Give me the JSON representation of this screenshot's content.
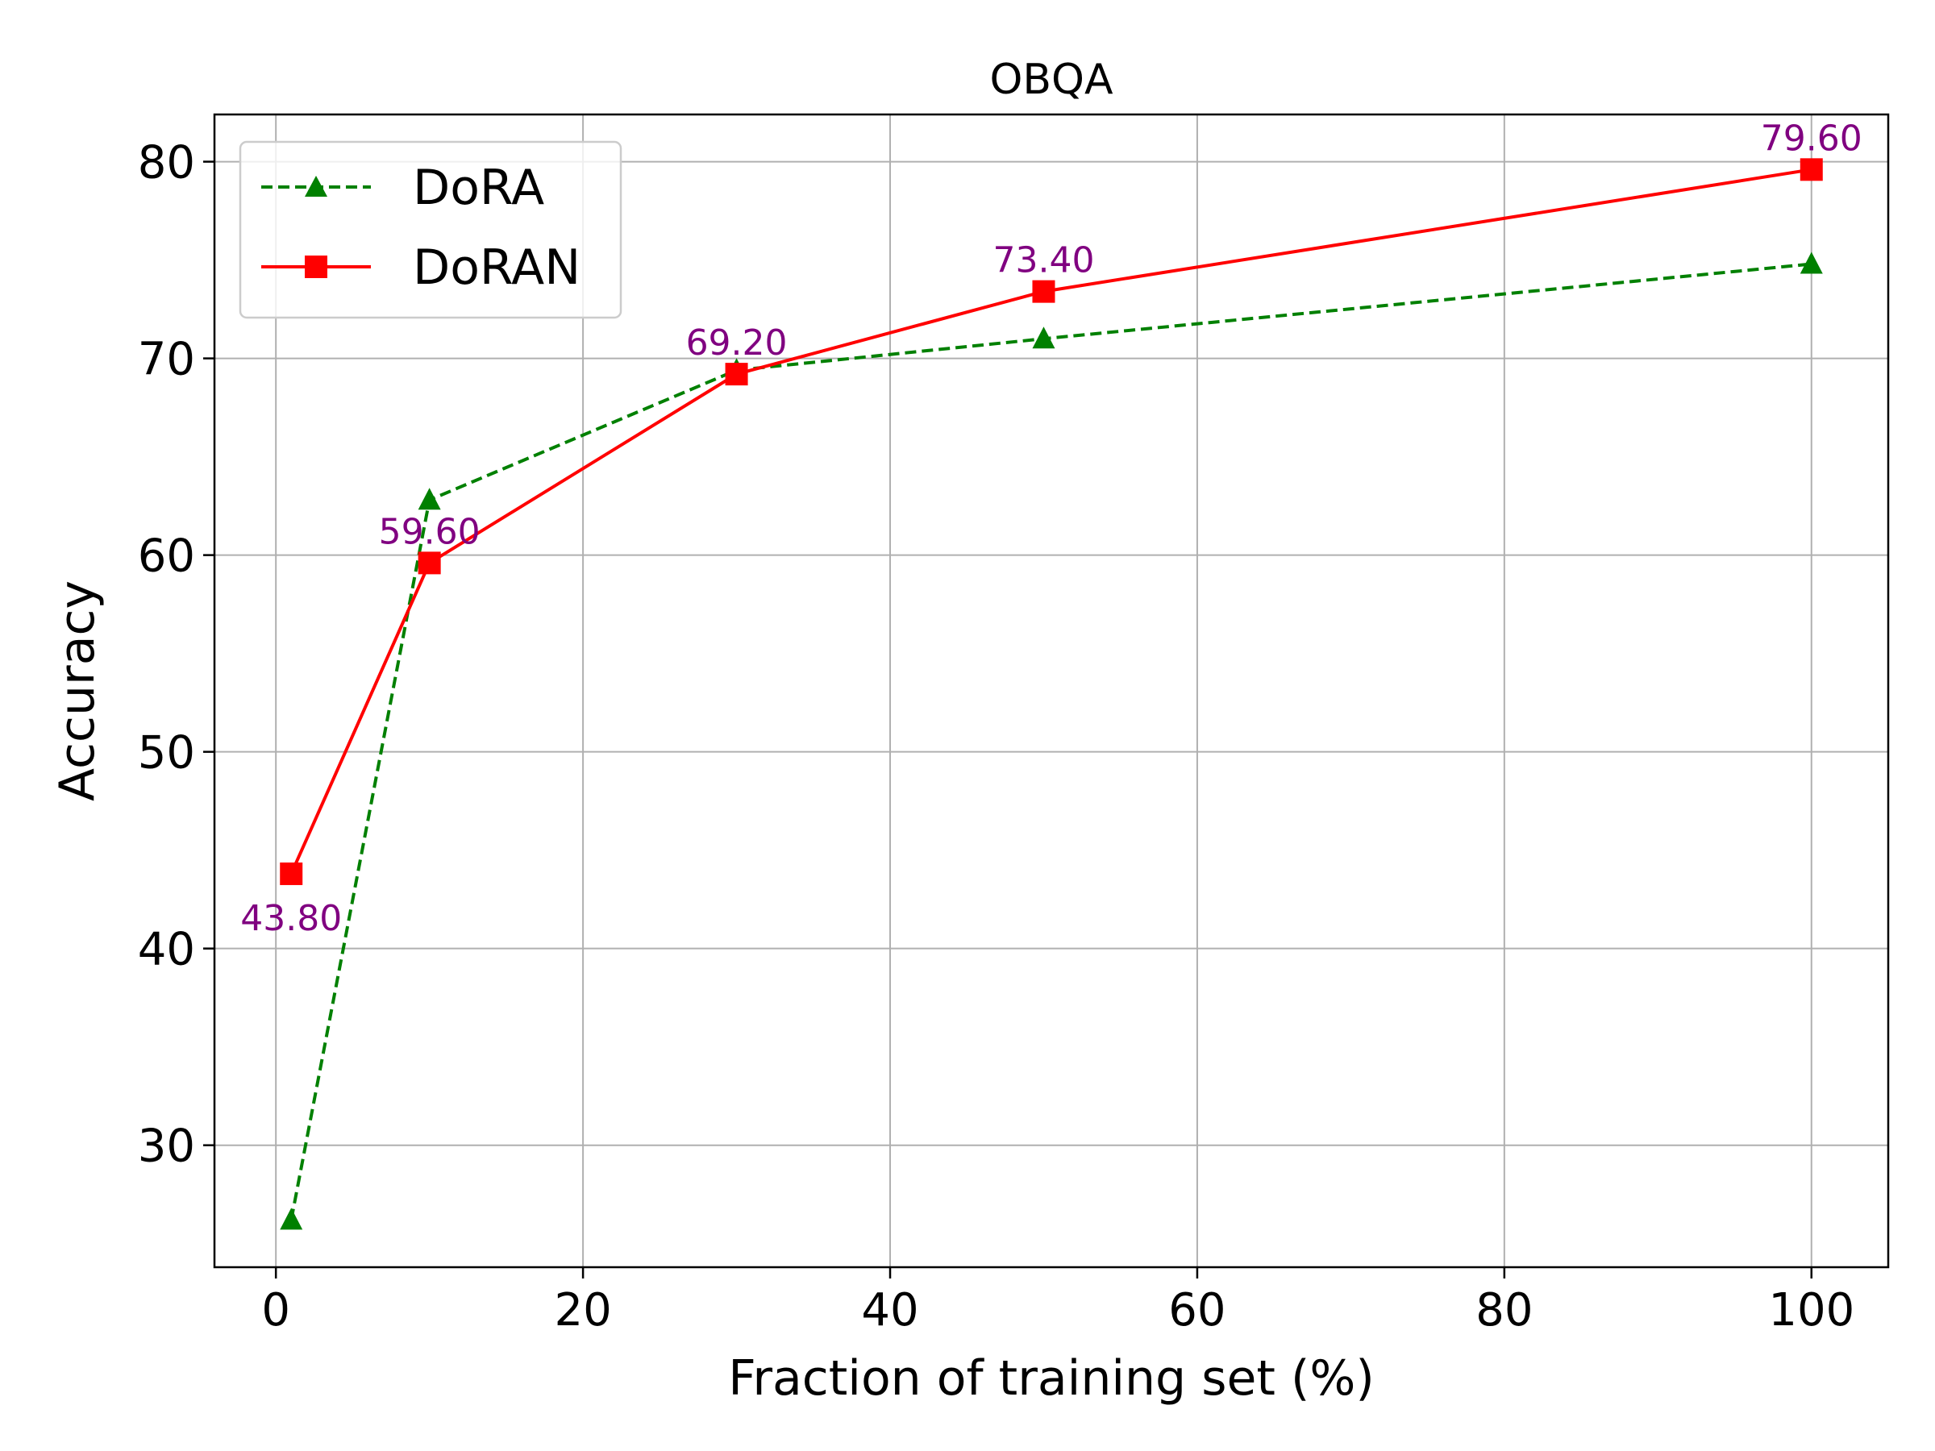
{
  "chart_data": {
    "type": "line",
    "title": "OBQA",
    "xlabel": "Fraction of training set (%)",
    "ylabel": "Accuracy",
    "xlim": [
      -4,
      105
    ],
    "ylim": [
      23.8,
      82.4
    ],
    "xticks": [
      0,
      20,
      40,
      60,
      80,
      100
    ],
    "yticks": [
      30,
      40,
      50,
      60,
      70,
      80
    ],
    "grid": true,
    "legend_position": "top-left",
    "x": [
      1,
      10,
      30,
      50,
      100
    ],
    "series": [
      {
        "name": "DoRA",
        "values": [
          26.2,
          62.8,
          69.4,
          71.0,
          74.8
        ],
        "color": "#008000",
        "linestyle": "dashed",
        "marker": "triangle"
      },
      {
        "name": "DoRAN",
        "values": [
          43.8,
          59.6,
          69.2,
          73.4,
          79.6
        ],
        "color": "#ff0000",
        "linestyle": "solid",
        "marker": "square"
      }
    ],
    "annotations": [
      {
        "series": "DoRAN",
        "x": 1,
        "y": 43.8,
        "text": "43.80",
        "position": "below"
      },
      {
        "series": "DoRAN",
        "x": 10,
        "y": 59.6,
        "text": "59.60",
        "position": "above"
      },
      {
        "series": "DoRAN",
        "x": 30,
        "y": 69.2,
        "text": "69.20",
        "position": "above"
      },
      {
        "series": "DoRAN",
        "x": 50,
        "y": 73.4,
        "text": "73.40",
        "position": "above"
      },
      {
        "series": "DoRAN",
        "x": 100,
        "y": 79.6,
        "text": "79.60",
        "position": "above"
      }
    ],
    "annotation_color": "#800080"
  }
}
